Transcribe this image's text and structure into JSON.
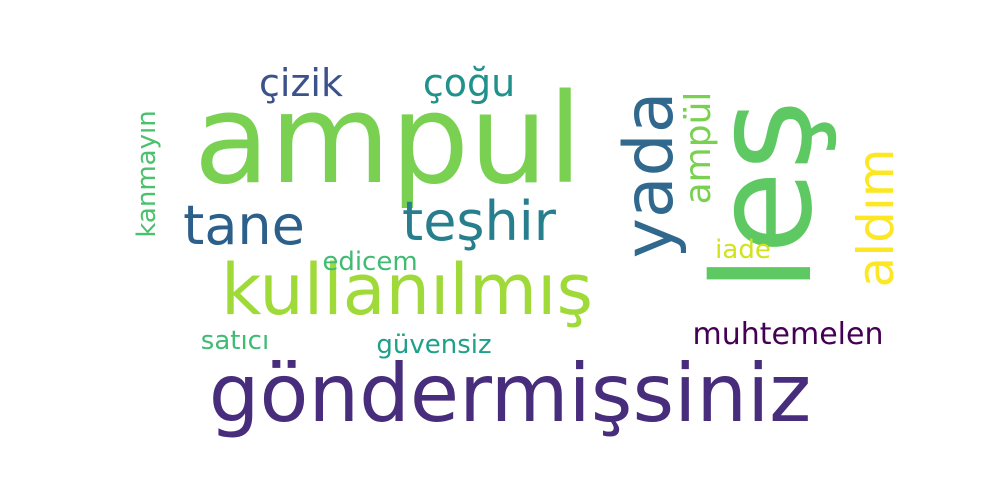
{
  "words": [
    {
      "key": "ampul_big",
      "text": "ampul",
      "color": "#7ad151"
    },
    {
      "key": "les",
      "text": "leş",
      "color": "#5ec962"
    },
    {
      "key": "gondermissiniz",
      "text": "göndermişsiniz",
      "color": "#472d7b"
    },
    {
      "key": "kullanilmis",
      "text": "kullanılmış",
      "color": "#a0da39"
    },
    {
      "key": "yada",
      "text": "yada",
      "color": "#31688e"
    },
    {
      "key": "tane",
      "text": "tane",
      "color": "#2c5f8a"
    },
    {
      "key": "teshir",
      "text": "teşhir",
      "color": "#277f8e"
    },
    {
      "key": "aldim",
      "text": "aldım",
      "color": "#fde725"
    },
    {
      "key": "cizik",
      "text": "çizik",
      "color": "#3b528b"
    },
    {
      "key": "cogu",
      "text": "çoğu",
      "color": "#21918c"
    },
    {
      "key": "ampul_small",
      "text": "ampül",
      "color": "#7ad151"
    },
    {
      "key": "kanmayin",
      "text": "kanmayın",
      "color": "#4ac16d"
    },
    {
      "key": "edicem",
      "text": "edicem",
      "color": "#3fbc73"
    },
    {
      "key": "iade",
      "text": "iade",
      "color": "#d2e21b"
    },
    {
      "key": "satici",
      "text": "satıcı",
      "color": "#3fbc73"
    },
    {
      "key": "guvensiz",
      "text": "güvensiz",
      "color": "#1fa088"
    },
    {
      "key": "muhtemelen",
      "text": "muhtemelen",
      "color": "#440154"
    }
  ]
}
